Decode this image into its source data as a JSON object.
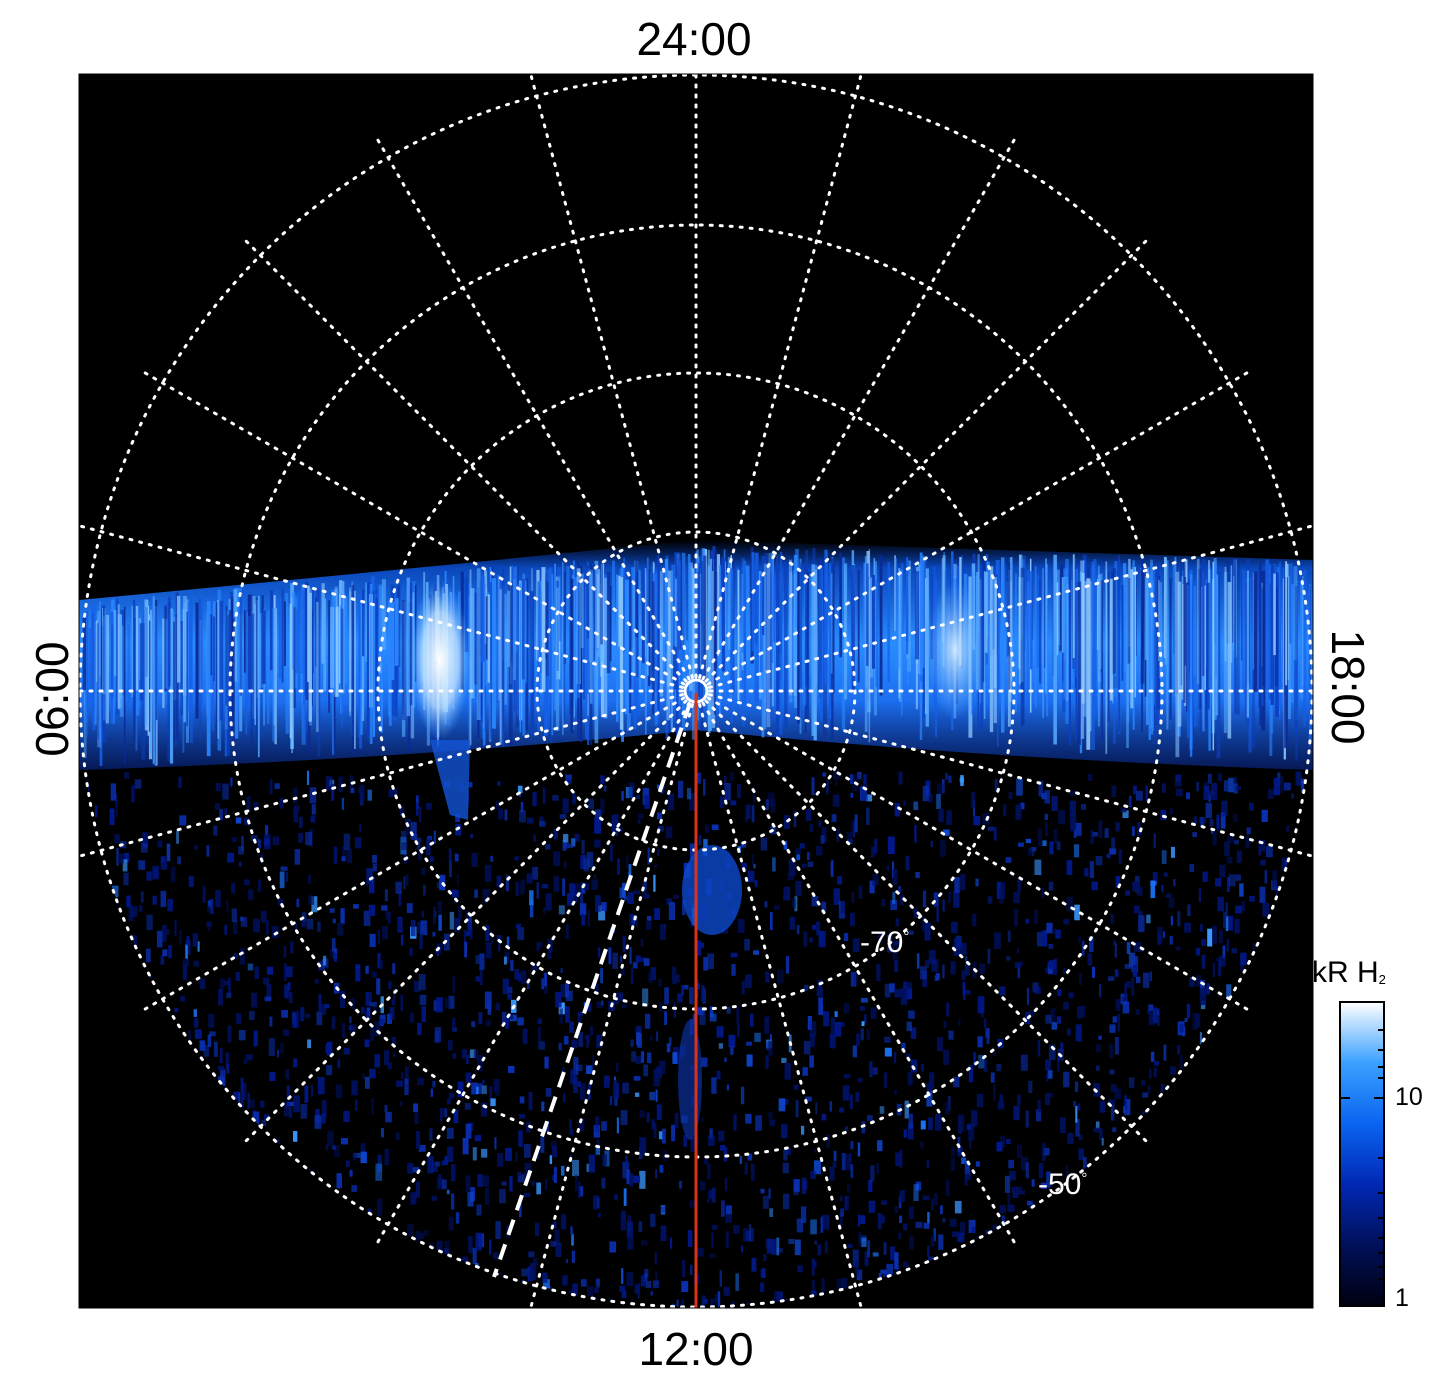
{
  "local_time_labels": {
    "top": "24:00",
    "bottom": "12:00",
    "left": "06:00",
    "right": "18:00"
  },
  "latitude_labels": [
    {
      "value": "-70",
      "unit": "°"
    },
    {
      "value": "-50",
      "unit": "°"
    }
  ],
  "colorbar": {
    "title": "kR H",
    "title_subscript": "2",
    "tick_labels": [
      "10",
      "1"
    ],
    "colors": [
      "#000010",
      "#001a8c",
      "#0a4de0",
      "#1f8cff",
      "#7fc4ff",
      "#ffffff"
    ]
  },
  "colors": {
    "background": "#000000",
    "grid": "#ffffff",
    "meridian_line": "#d9341a",
    "dashed_line": "#ffffff"
  }
}
